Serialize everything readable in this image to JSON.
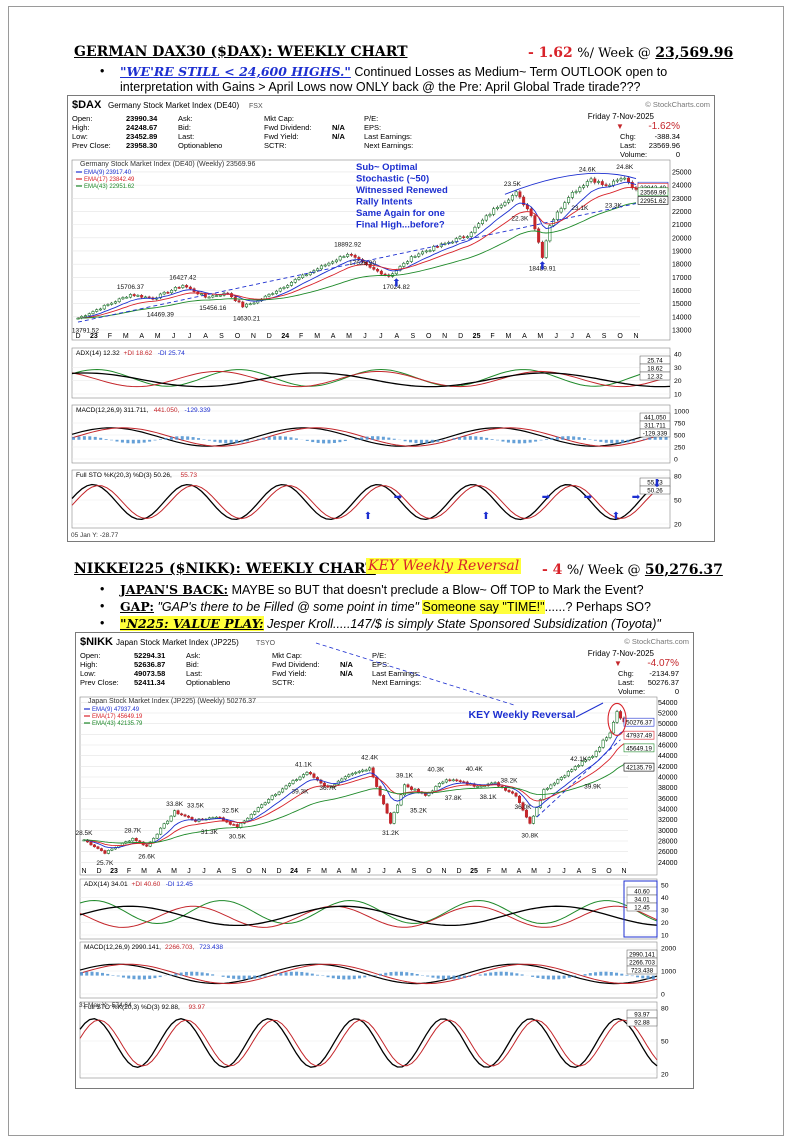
{
  "dax_section": {
    "title": "GERMAN DAX30 ($DAX): WEEKLY CHART",
    "change": "- 1.62",
    "change_unit": "%/ Week @",
    "level": "23,569.96",
    "bullet_quote": "\"WE'RE STILL < 24,600 HIGHS.\"",
    "bullet_text_1": "Continued Losses as Medium~ Term OUTLOOK open to",
    "bullet_text_2": "interpretation with Gains > April Lows now ONLY back @ the Pre: April Global Trade tirade???"
  },
  "dax_chart": {
    "symbol": "$DAX",
    "name": "Germany Stock Market Index (DE40)",
    "exchange": "FSX",
    "watermark": "© StockCharts.com",
    "date": "Friday 7-Nov-2025",
    "change_pct": "-1.62%",
    "chg_label": "Chg:",
    "chg": "-388.34",
    "last_label": "Last:",
    "last": "23569.96",
    "volume_label": "Volume:",
    "volume": "0",
    "quote_rows": [
      [
        "Open:",
        "23990.34",
        "Ask:",
        "",
        "Mkt Cap:",
        "",
        "P/E:",
        ""
      ],
      [
        "High:",
        "24248.67",
        "Bid:",
        "",
        "Fwd Dividend:",
        "N/A",
        "EPS:",
        ""
      ],
      [
        "Low:",
        "23452.89",
        "Last:",
        "",
        "Fwd Yield:",
        "N/A",
        "Last Earnings:",
        ""
      ],
      [
        "Prev Close:",
        "23958.30",
        "Optionable:",
        "no",
        "SCTR:",
        "",
        "Next Earnings:",
        ""
      ]
    ],
    "price_header": "Germany Stock Market Index (DE40) (Weekly) 23569.96",
    "legend": [
      {
        "label": "EMA(9) 23917.40",
        "color": "#1d2fd0"
      },
      {
        "label": "EMA(17) 23842.49",
        "color": "#d8232a"
      },
      {
        "label": "EMA(43) 22951.62",
        "color": "#1f8a2a"
      }
    ],
    "annotation": [
      "Sub~ Optimal",
      "Stochastic (~50)",
      "Witnessed Renewed",
      "Rally Intents",
      "Same Again for one",
      "Final High...before?"
    ],
    "peak_labels": [
      "13791.52",
      "15706.37",
      "14469.39",
      "16427.42",
      "15456.16",
      "14630.21",
      "18892.92",
      "17626.90",
      "17024.82",
      "23.5K",
      "22.3K",
      "18489.91",
      "24.6K",
      "23.1K",
      "24.8K",
      "23.3K"
    ],
    "y_ticks": [
      "25000",
      "24000",
      "23000",
      "22000",
      "21000",
      "20000",
      "19000",
      "18000",
      "17000",
      "16000",
      "15000",
      "14000",
      "13000"
    ],
    "right_tags": [
      "23917.40",
      "23842.49",
      "23569.96",
      "22951.62"
    ],
    "x_labels": [
      "D",
      "23",
      "F",
      "M",
      "A",
      "M",
      "J",
      "J",
      "A",
      "S",
      "O",
      "N",
      "D",
      "24",
      "F",
      "M",
      "A",
      "M",
      "J",
      "J",
      "A",
      "S",
      "O",
      "N",
      "D",
      "25",
      "F",
      "M",
      "A",
      "M",
      "J",
      "J",
      "A",
      "S",
      "O",
      "N"
    ],
    "adx_header": [
      "ADX(14) 12.32",
      "+DI 18.62",
      "-DI 25.74"
    ],
    "adx_ticks": [
      "40",
      "30",
      "20",
      "10"
    ],
    "adx_tags": [
      "25.74",
      "18.62",
      "12.32"
    ],
    "macd_header": [
      "MACD(12,26,9) 311.711,",
      "441.050,",
      "-129.339"
    ],
    "macd_ticks": [
      "1000",
      "750",
      "500",
      "250",
      "0"
    ],
    "macd_tags": [
      "441.050",
      "311.711",
      "-129.339"
    ],
    "sto_header": [
      "Full STO %K(20,3) %D(3) 50.26,",
      "55.73"
    ],
    "sto_ticks": [
      "80",
      "50",
      "20"
    ],
    "sto_tags": [
      "55.73",
      "50.26"
    ],
    "bottom_note": "05 Jan Y: -28.77",
    "colors": {
      "green_candle": "#1c7a2c",
      "red_candle": "#c4262b",
      "blue_ann": "#1d2fd0"
    }
  },
  "nikkei_section": {
    "title": "NIKKEI225 ($NIKK): WEEKLY CHART",
    "reversal_tag": "KEY Weekly Reversal",
    "change": "- 4",
    "change_unit": "%/ Week @",
    "level": "50,276.37",
    "b1_label": "JAPAN'S BACK:",
    "b1_text": "MAYBE so BUT that doesn't preclude a Blow~ Off TOP to Mark the Event?",
    "b2_label": "GAP:",
    "b2_quote": "\"GAP's there to be Filled @ some point in time\"",
    "b2_hl": "Someone say \"TIME!\"",
    "b2_tail": "......? Perhaps SO?",
    "b3_label": "\"N225: VALUE PLAY:",
    "b3_text": "Jesper Kroll.....147/$ is simply State Sponsored Subsidization (Toyota)\""
  },
  "nikkei_chart": {
    "symbol": "$NIKK",
    "name": "Japan Stock Market Index (JP225)",
    "exchange": "TSYO",
    "watermark": "© StockCharts.com",
    "date": "Friday 7-Nov-2025",
    "change_pct": "-4.07%",
    "chg_label": "Chg:",
    "chg": "-2134.97",
    "last_label": "Last:",
    "last": "50276.37",
    "volume_label": "Volume:",
    "volume": "0",
    "quote_rows": [
      [
        "Open:",
        "52294.31",
        "Ask:",
        "",
        "Mkt Cap:",
        "",
        "P/E:",
        ""
      ],
      [
        "High:",
        "52636.87",
        "Bid:",
        "",
        "Fwd Dividend:",
        "N/A",
        "EPS:",
        ""
      ],
      [
        "Low:",
        "49073.58",
        "Last:",
        "",
        "Fwd Yield:",
        "N/A",
        "Last Earnings:",
        ""
      ],
      [
        "Prev Close:",
        "52411.34",
        "Optionable:",
        "no",
        "SCTR:",
        "",
        "Next Earnings:",
        ""
      ]
    ],
    "price_header": "Japan Stock Market Index (JP225) (Weekly) 50276.37",
    "legend": [
      {
        "label": "EMA(9) 47937.49",
        "color": "#1d2fd0"
      },
      {
        "label": "EMA(17) 45649.19",
        "color": "#d8232a"
      },
      {
        "label": "EMA(43) 42135.79",
        "color": "#1f8a2a"
      }
    ],
    "annotation": "KEY Weekly Reversal",
    "peak_labels": [
      "28.5K",
      "25.7K",
      "28.7K",
      "26.6K",
      "33.8K",
      "33.5K",
      "31.3K",
      "32.5K",
      "30.5K",
      "41.1K",
      "39.3K",
      "36.7K",
      "42.4K",
      "31.2K",
      "39.1K",
      "35.2K",
      "40.3K",
      "37.8K",
      "40.4K",
      "38.1K",
      "38.2K",
      "36.0K",
      "30.8K",
      "42.1K",
      "39.9K"
    ],
    "y_ticks": [
      "54000",
      "52000",
      "50000",
      "48000",
      "46000",
      "44000",
      "42000",
      "40000",
      "38000",
      "36000",
      "34000",
      "32000",
      "30000",
      "28000",
      "26000",
      "24000"
    ],
    "right_tags": [
      "50276.37",
      "47937.49",
      "45649.19",
      "42135.79"
    ],
    "x_labels": [
      "N",
      "D",
      "23",
      "F",
      "M",
      "A",
      "M",
      "J",
      "J",
      "A",
      "S",
      "O",
      "N",
      "D",
      "24",
      "F",
      "M",
      "A",
      "M",
      "J",
      "J",
      "A",
      "S",
      "O",
      "N",
      "D",
      "25",
      "F",
      "M",
      "A",
      "M",
      "J",
      "J",
      "A",
      "S",
      "O",
      "N"
    ],
    "adx_header": [
      "ADX(14) 34.01",
      "+DI 40.60",
      "-DI 12.45"
    ],
    "adx_ticks": [
      "50",
      "40",
      "30",
      "20",
      "10"
    ],
    "adx_tags": [
      "40.60",
      "34.01",
      "12.45"
    ],
    "macd_header": [
      "MACD(12,26,9) 2990.141,",
      "2266.703,",
      "723.438"
    ],
    "macd_ticks": [
      "2000",
      "1000",
      "0"
    ],
    "macd_tags": [
      "2990.141",
      "2266.703",
      "723.438"
    ],
    "sto_header": [
      "Full STO %K(20,3) %D(3) 92.88,",
      "93.97"
    ],
    "sto_ticks": [
      "80",
      "50",
      "20"
    ],
    "sto_tags": [
      "93.97",
      "92.88"
    ],
    "bottom_note": "31 May Y: -574.64"
  },
  "chart_data": [
    {
      "type": "line",
      "title": "Germany Stock Market Index (DE40) (Weekly)",
      "x": [
        "2022-12",
        "2023-03",
        "2023-06",
        "2023-07",
        "2023-10",
        "2023-12",
        "2024-04",
        "2024-06",
        "2024-08",
        "2024-12",
        "2025-03",
        "2025-04",
        "2025-07",
        "2025-10",
        "2025-11"
      ],
      "series": [
        {
          "name": "$DAX",
          "values": [
            13791.52,
            15706.37,
            16427.42,
            16427.42,
            14630.21,
            16800,
            18892.92,
            17626.9,
            17024.82,
            20000,
            23500,
            18489.91,
            24600,
            24800,
            23569.96
          ]
        }
      ],
      "ylim": [
        13000,
        25000
      ]
    },
    {
      "type": "line",
      "title": "Japan Stock Market Index (JP225) (Weekly)",
      "x": [
        "2022-11",
        "2023-01",
        "2023-03",
        "2023-06",
        "2023-09",
        "2023-11",
        "2024-03",
        "2024-07",
        "2024-08",
        "2024-10",
        "2025-01",
        "2025-04",
        "2025-08",
        "2025-10",
        "2025-11"
      ],
      "series": [
        {
          "name": "$NIKK",
          "values": [
            28500,
            25700,
            28700,
            33800,
            30500,
            33500,
            41100,
            42400,
            31200,
            39100,
            40400,
            30800,
            42100,
            52400,
            50276.37
          ]
        }
      ],
      "ylim": [
        24000,
        54000
      ]
    }
  ]
}
